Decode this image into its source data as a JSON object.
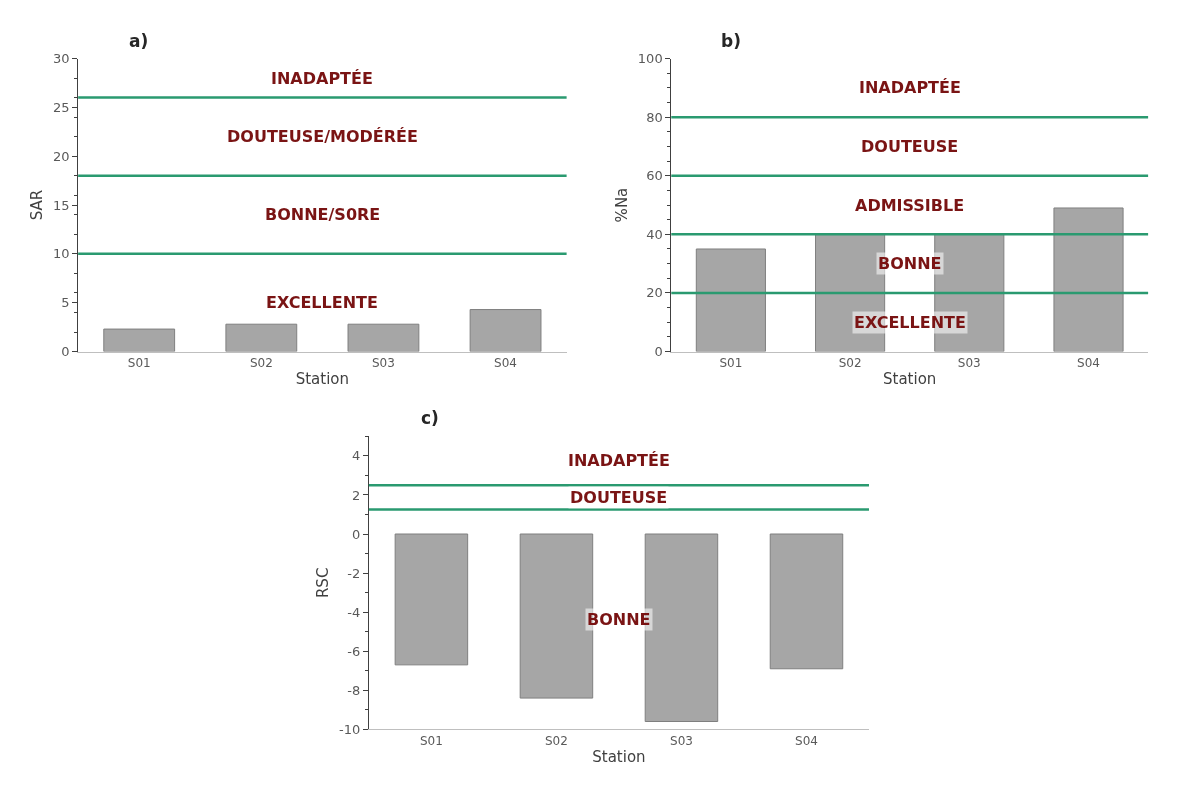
{
  "chart_data": [
    {
      "type": "bar",
      "title": "a)",
      "xlabel": "Station",
      "ylabel": "SAR",
      "categories": [
        "S01",
        "S02",
        "S03",
        "S04"
      ],
      "values": [
        2.3,
        2.8,
        2.8,
        4.3
      ],
      "color": "#a6a6a6",
      "ylim": [
        0,
        30
      ],
      "yticks": [
        0,
        5,
        10,
        15,
        20,
        25,
        30
      ],
      "ref_lines": [
        {
          "axis": "y",
          "value": 10,
          "color": "#2a9a70"
        },
        {
          "axis": "y",
          "value": 18,
          "color": "#2a9a70"
        },
        {
          "axis": "y",
          "value": 26,
          "color": "#2a9a70"
        }
      ],
      "annotations": [
        "INADAPTÉE",
        "DOUTEUSE/MODÉRÉE",
        "BONNE/S0RE",
        "EXCELLENTE"
      ]
    },
    {
      "type": "bar",
      "title": "b)",
      "xlabel": "Station",
      "ylabel": "%Na",
      "categories": [
        "S01",
        "S02",
        "S03",
        "S04"
      ],
      "values": [
        35,
        40,
        40,
        49
      ],
      "color": "#a6a6a6",
      "ylim": [
        0,
        100
      ],
      "yticks": [
        0,
        20,
        40,
        60,
        80,
        100
      ],
      "ref_lines": [
        {
          "axis": "y",
          "value": 20,
          "color": "#2a9a70"
        },
        {
          "axis": "y",
          "value": 40,
          "color": "#2a9a70"
        },
        {
          "axis": "y",
          "value": 60,
          "color": "#2a9a70"
        },
        {
          "axis": "y",
          "value": 80,
          "color": "#2a9a70"
        }
      ],
      "annotations": [
        "INADAPTÉE",
        "DOUTEUSE",
        "ADMISSIBLE",
        "BONNE",
        "EXCELLENTE"
      ]
    },
    {
      "type": "bar",
      "title": "c)",
      "xlabel": "Station",
      "ylabel": "RSC",
      "categories": [
        "S01",
        "S02",
        "S03",
        "S04"
      ],
      "values": [
        -6.7,
        -8.4,
        -9.6,
        -6.9
      ],
      "color": "#a6a6a6",
      "ylim": [
        -10,
        5
      ],
      "yticks": [
        -10,
        -8,
        -6,
        -4,
        -2,
        0,
        2,
        4
      ],
      "ref_lines": [
        {
          "axis": "y",
          "value": 1.25,
          "color": "#2a9a70"
        },
        {
          "axis": "y",
          "value": 2.5,
          "color": "#2a9a70"
        }
      ],
      "annotations": [
        "INADAPTÉE",
        "DOUTEUSE",
        "BONNE"
      ]
    }
  ]
}
